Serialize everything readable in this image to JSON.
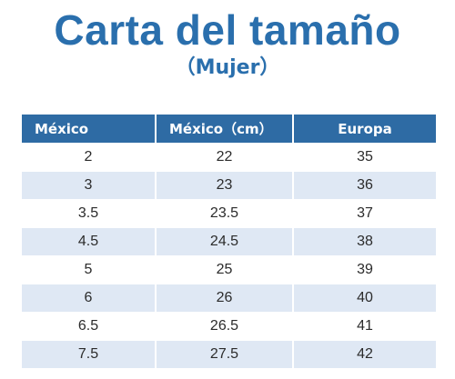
{
  "header": {
    "title": "Carta del tamaño",
    "subtitle": "（Mujer）"
  },
  "table": {
    "columns": [
      "México",
      "México（cm）",
      "Europa"
    ],
    "rows": [
      [
        "2",
        "22",
        "35"
      ],
      [
        "3",
        "23",
        "36"
      ],
      [
        "3.5",
        "23.5",
        "37"
      ],
      [
        "4.5",
        "24.5",
        "38"
      ],
      [
        "5",
        "25",
        "39"
      ],
      [
        "6",
        "26",
        "40"
      ],
      [
        "6.5",
        "26.5",
        "41"
      ],
      [
        "7.5",
        "27.5",
        "42"
      ]
    ]
  },
  "colors": {
    "accent": "#2a6fad",
    "header_bg": "#2e6ba4",
    "stripe": "#dfe8f4"
  }
}
